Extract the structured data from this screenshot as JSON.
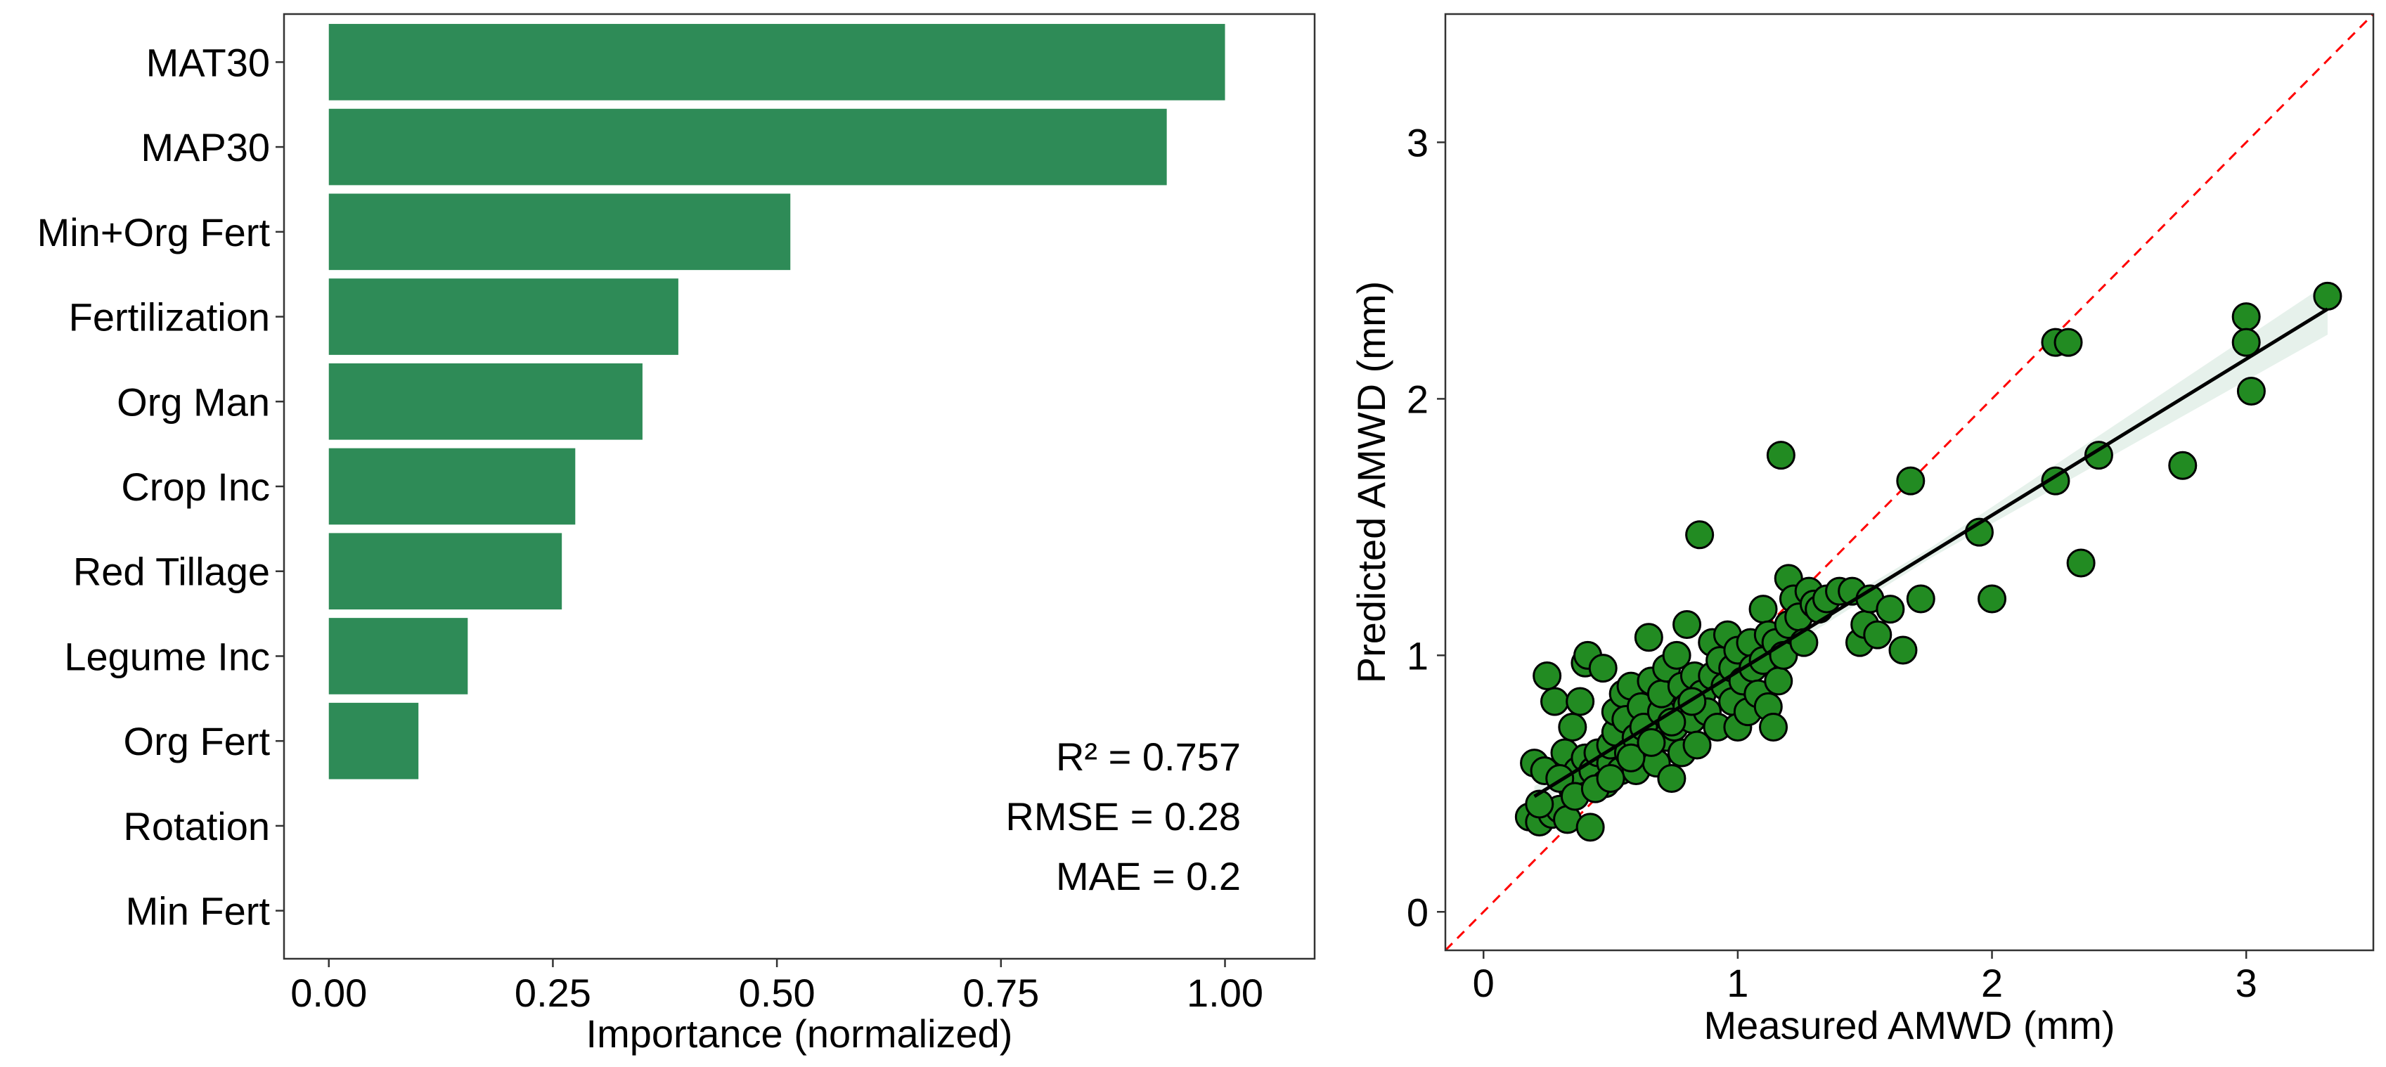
{
  "chart_data": [
    {
      "type": "bar",
      "orientation": "horizontal",
      "title": "",
      "xlabel": "Importance (normalized)",
      "ylabel": "",
      "xlim": [
        -0.05,
        1.1
      ],
      "x_ticks": [
        "0.00",
        "0.25",
        "0.50",
        "0.75",
        "1.00"
      ],
      "x_tick_values": [
        0,
        0.25,
        0.5,
        0.75,
        1.0
      ],
      "categories": [
        "MAT30",
        "MAP30",
        "Min+Org Fert",
        "Fertilization",
        "Org Man",
        "Crop Inc",
        "Red Tillage",
        "Legume Inc",
        "Org Fert",
        "Rotation",
        "Min Fert"
      ],
      "values": [
        1.0,
        0.935,
        0.515,
        0.39,
        0.35,
        0.275,
        0.26,
        0.155,
        0.1,
        0.0,
        0.0
      ],
      "bar_color": "#2E8B57",
      "annotations": [
        "R² = 0.757",
        "RMSE = 0.28",
        "MAE = 0.2"
      ]
    },
    {
      "type": "scatter",
      "title": "",
      "xlabel": "Measured AMWD (mm)",
      "ylabel": "Predicted AMWD (mm)",
      "xlim": [
        -0.15,
        3.5
      ],
      "ylim": [
        -0.15,
        3.5
      ],
      "x_ticks": [
        "0",
        "1",
        "2",
        "3"
      ],
      "x_tick_values": [
        0,
        1,
        2,
        3
      ],
      "y_ticks": [
        "0",
        "1",
        "2",
        "3"
      ],
      "y_tick_values": [
        0,
        1,
        2,
        3
      ],
      "point_color": "#228B22",
      "identity_line": {
        "style": "dashed",
        "color": "#FF0000"
      },
      "fit_line": {
        "color": "#000000",
        "x": [
          0.2,
          3.32
        ],
        "y": [
          0.45,
          2.35
        ]
      },
      "confidence_band_color": "#2E8B57",
      "points": [
        [
          0.18,
          0.37
        ],
        [
          0.2,
          0.58
        ],
        [
          0.22,
          0.35
        ],
        [
          0.24,
          0.55
        ],
        [
          0.25,
          0.92
        ],
        [
          0.27,
          0.38
        ],
        [
          0.28,
          0.82
        ],
        [
          0.3,
          0.4
        ],
        [
          0.32,
          0.62
        ],
        [
          0.33,
          0.36
        ],
        [
          0.35,
          0.48
        ],
        [
          0.35,
          0.72
        ],
        [
          0.37,
          0.55
        ],
        [
          0.38,
          0.82
        ],
        [
          0.4,
          0.97
        ],
        [
          0.4,
          0.6
        ],
        [
          0.41,
          1.0
        ],
        [
          0.42,
          0.33
        ],
        [
          0.43,
          0.55
        ],
        [
          0.45,
          0.62
        ],
        [
          0.47,
          0.95
        ],
        [
          0.48,
          0.5
        ],
        [
          0.5,
          0.58
        ],
        [
          0.5,
          0.65
        ],
        [
          0.52,
          0.7
        ],
        [
          0.52,
          0.78
        ],
        [
          0.54,
          0.55
        ],
        [
          0.55,
          0.85
        ],
        [
          0.56,
          0.75
        ],
        [
          0.57,
          0.62
        ],
        [
          0.58,
          0.88
        ],
        [
          0.6,
          0.68
        ],
        [
          0.6,
          0.55
        ],
        [
          0.62,
          0.8
        ],
        [
          0.63,
          0.72
        ],
        [
          0.65,
          1.07
        ],
        [
          0.65,
          0.62
        ],
        [
          0.66,
          0.9
        ],
        [
          0.68,
          0.58
        ],
        [
          0.7,
          0.78
        ],
        [
          0.7,
          0.85
        ],
        [
          0.72,
          0.95
        ],
        [
          0.72,
          0.68
        ],
        [
          0.74,
          0.52
        ],
        [
          0.75,
          0.72
        ],
        [
          0.76,
          1.0
        ],
        [
          0.78,
          0.88
        ],
        [
          0.78,
          0.62
        ],
        [
          0.8,
          1.12
        ],
        [
          0.8,
          0.8
        ],
        [
          0.82,
          0.75
        ],
        [
          0.83,
          0.92
        ],
        [
          0.84,
          0.65
        ],
        [
          0.85,
          1.47
        ],
        [
          0.86,
          0.85
        ],
        [
          0.88,
          0.78
        ],
        [
          0.9,
          1.05
        ],
        [
          0.9,
          0.92
        ],
        [
          0.92,
          0.72
        ],
        [
          0.93,
          0.98
        ],
        [
          0.95,
          0.88
        ],
        [
          0.96,
          1.08
        ],
        [
          0.98,
          0.82
        ],
        [
          0.98,
          0.95
        ],
        [
          1.0,
          0.72
        ],
        [
          1.0,
          1.02
        ],
        [
          1.02,
          0.9
        ],
        [
          1.04,
          0.78
        ],
        [
          1.05,
          1.05
        ],
        [
          1.06,
          0.95
        ],
        [
          1.08,
          0.85
        ],
        [
          1.1,
          1.18
        ],
        [
          1.1,
          0.98
        ],
        [
          1.12,
          0.8
        ],
        [
          1.12,
          1.08
        ],
        [
          1.14,
          0.72
        ],
        [
          1.15,
          1.05
        ],
        [
          1.16,
          0.9
        ],
        [
          1.17,
          1.78
        ],
        [
          1.18,
          1.0
        ],
        [
          1.2,
          1.12
        ],
        [
          1.2,
          1.3
        ],
        [
          1.22,
          1.22
        ],
        [
          1.24,
          1.15
        ],
        [
          1.26,
          1.05
        ],
        [
          1.28,
          1.25
        ],
        [
          1.3,
          1.2
        ],
        [
          1.32,
          1.18
        ],
        [
          1.35,
          1.22
        ],
        [
          1.4,
          1.25
        ],
        [
          1.45,
          1.25
        ],
        [
          1.48,
          1.05
        ],
        [
          1.5,
          1.12
        ],
        [
          1.52,
          1.22
        ],
        [
          1.55,
          1.08
        ],
        [
          1.6,
          1.18
        ],
        [
          1.65,
          1.02
        ],
        [
          1.68,
          1.68
        ],
        [
          1.72,
          1.22
        ],
        [
          1.95,
          1.48
        ],
        [
          2.0,
          1.22
        ],
        [
          2.25,
          1.68
        ],
        [
          2.25,
          2.22
        ],
        [
          2.3,
          2.22
        ],
        [
          2.35,
          1.36
        ],
        [
          2.42,
          1.78
        ],
        [
          2.75,
          1.74
        ],
        [
          3.0,
          2.32
        ],
        [
          3.0,
          2.22
        ],
        [
          3.02,
          2.03
        ],
        [
          3.32,
          2.4
        ],
        [
          0.22,
          0.42
        ],
        [
          0.3,
          0.52
        ],
        [
          0.36,
          0.45
        ],
        [
          0.44,
          0.48
        ],
        [
          0.5,
          0.52
        ],
        [
          0.58,
          0.6
        ],
        [
          0.66,
          0.66
        ],
        [
          0.74,
          0.74
        ],
        [
          0.82,
          0.82
        ]
      ]
    }
  ]
}
